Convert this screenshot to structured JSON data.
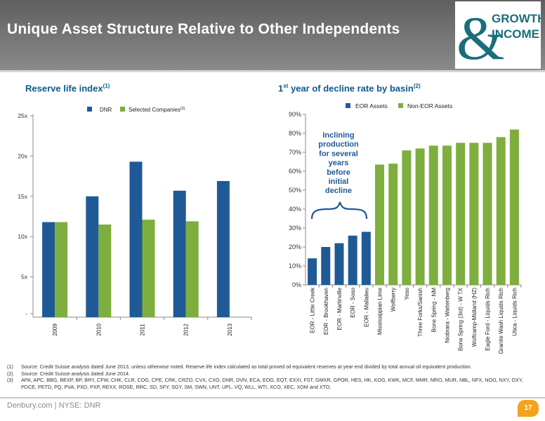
{
  "header": {
    "title": "Unique Asset Structure Relative to Other Independents",
    "logo": {
      "symbol": "&",
      "line1": "GROWTH",
      "line2": "INCOME",
      "color": "#1a6e7a"
    }
  },
  "left_section": {
    "title": "Reserve life index",
    "title_sup": "(1)"
  },
  "right_section": {
    "title_main": "1",
    "title_ord": "st",
    "title_rest": " year of decline rate by basin",
    "title_sup": "(2)"
  },
  "annotation": {
    "lines": [
      "Inclining",
      "production",
      "for several",
      "years",
      "before",
      "initial",
      "decline"
    ]
  },
  "chart_data": [
    {
      "type": "bar",
      "categories": [
        "2009",
        "2010",
        "2011",
        "2012",
        "2013"
      ],
      "series": [
        {
          "name": "DNR",
          "values": [
            11.8,
            15.0,
            19.3,
            15.7,
            16.9
          ],
          "color": "#1f5a96"
        },
        {
          "name": "Selected Companies",
          "name_sup": "(3)",
          "values": [
            11.8,
            11.5,
            12.1,
            11.9,
            null
          ],
          "color": "#7eae3e"
        }
      ],
      "y_ticks": [
        {
          "value": 0,
          "label": "-"
        },
        {
          "value": 5,
          "label": "5x"
        },
        {
          "value": 10,
          "label": "10x"
        },
        {
          "value": 15,
          "label": "15x"
        },
        {
          "value": 20,
          "label": "20x"
        },
        {
          "value": 25,
          "label": "25x"
        }
      ],
      "ylim": [
        0,
        25
      ],
      "legend": "top-center",
      "grid": false
    },
    {
      "type": "bar",
      "categories": [
        "EOR - Little Creek",
        "EOR - Brookhaven",
        "EOR - Martinville",
        "EOR - Soso",
        "EOR - Mallalieu",
        "Mississippian Lime",
        "Wolfberry",
        "Yeso",
        "Three Forks/Sanish",
        "Bone Spring - NM",
        "Niobrara - Wattenberg",
        "Bone Spring (3rd) - W TX",
        "Wolfcamp-Midland (HZ)",
        "Eagle Ford - Liquids Rich",
        "Granite Wash Liquids Rich",
        "Utica - Liquids Rich"
      ],
      "values": [
        0.14,
        0.2,
        0.22,
        0.26,
        0.28,
        0.635,
        0.64,
        0.71,
        0.72,
        0.735,
        0.735,
        0.75,
        0.75,
        0.75,
        0.78,
        0.82
      ],
      "series": [
        {
          "name": "EOR Assets",
          "color": "#1f5a96"
        },
        {
          "name": "Non-EOR Assets",
          "color": "#7eae3e"
        }
      ],
      "eor_count": 5,
      "y_ticks": [
        "0%",
        "10%",
        "20%",
        "30%",
        "40%",
        "50%",
        "60%",
        "70%",
        "80%",
        "90%"
      ],
      "ylim": [
        0,
        0.9
      ],
      "legend": "top-center",
      "grid": false
    }
  ],
  "footnotes": [
    {
      "num": "(1)",
      "text": "Source: Credit Suisse analysis dated June 2013, unless otherwise noted.  Reserve life index calculated as total proved oil equivalent reserves at year end divided by total annual oil equivalent production."
    },
    {
      "num": "(2)",
      "text": "Source: Credit Suisse analysis dated June 2014."
    },
    {
      "num": "(3)",
      "text": "APA, APC, BBG, BEXP, BP, BRY, CFW, CHK, CLR, COG, CPE, CRK, CRZO, CVX, CXO, DNR, DVN, ECA, EOG, EQT, EXXI, FST, GMXR, GPOR, HES, HK, KOG, KWK, MCF, MMR, MRO, MUR, NBL, NFX, NOG, NXY, OXY, PDCE, PETD, PQ, PVA, PXD, PXP, REXX, ROSE, RRC, SD, SFY, SGY, SM, SWN, UNT, UPL, VQ, WLL, WTI, XCO, XEC, XOM and XTO."
    }
  ],
  "footer": {
    "text": "Denbury.com  |  NYSE: DNR",
    "page_number": "17"
  }
}
